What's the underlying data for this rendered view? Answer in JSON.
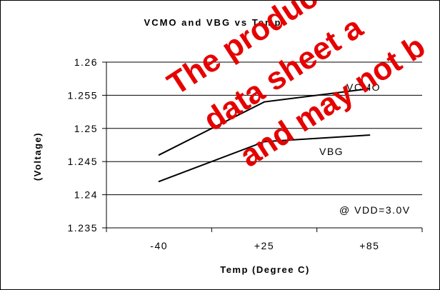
{
  "chart_data": {
    "type": "line",
    "title": "VCMO and VBG vs Temp",
    "xlabel": "Temp (Degree C)",
    "ylabel": "(Voltage)",
    "categories": [
      "-40",
      "+25",
      "+85"
    ],
    "ylim": [
      1.235,
      1.26
    ],
    "yticks": [
      1.26,
      1.255,
      1.25,
      1.245,
      1.24,
      1.235
    ],
    "ytick_labels": [
      "1.26",
      "1.255",
      "1.25",
      "1.245",
      "1.24",
      "1.235"
    ],
    "grid": true,
    "series": [
      {
        "name": "VCMO",
        "values": [
          1.246,
          1.254,
          1.256
        ],
        "color": "#000000"
      },
      {
        "name": "VBG",
        "values": [
          1.242,
          1.248,
          1.249
        ],
        "color": "#000000"
      }
    ],
    "annotations": [
      "@ VDD=3.0V"
    ]
  },
  "watermark": {
    "lines": [
      "The product a",
      "data sheet a",
      "and may not b"
    ],
    "color": "#e60000"
  }
}
